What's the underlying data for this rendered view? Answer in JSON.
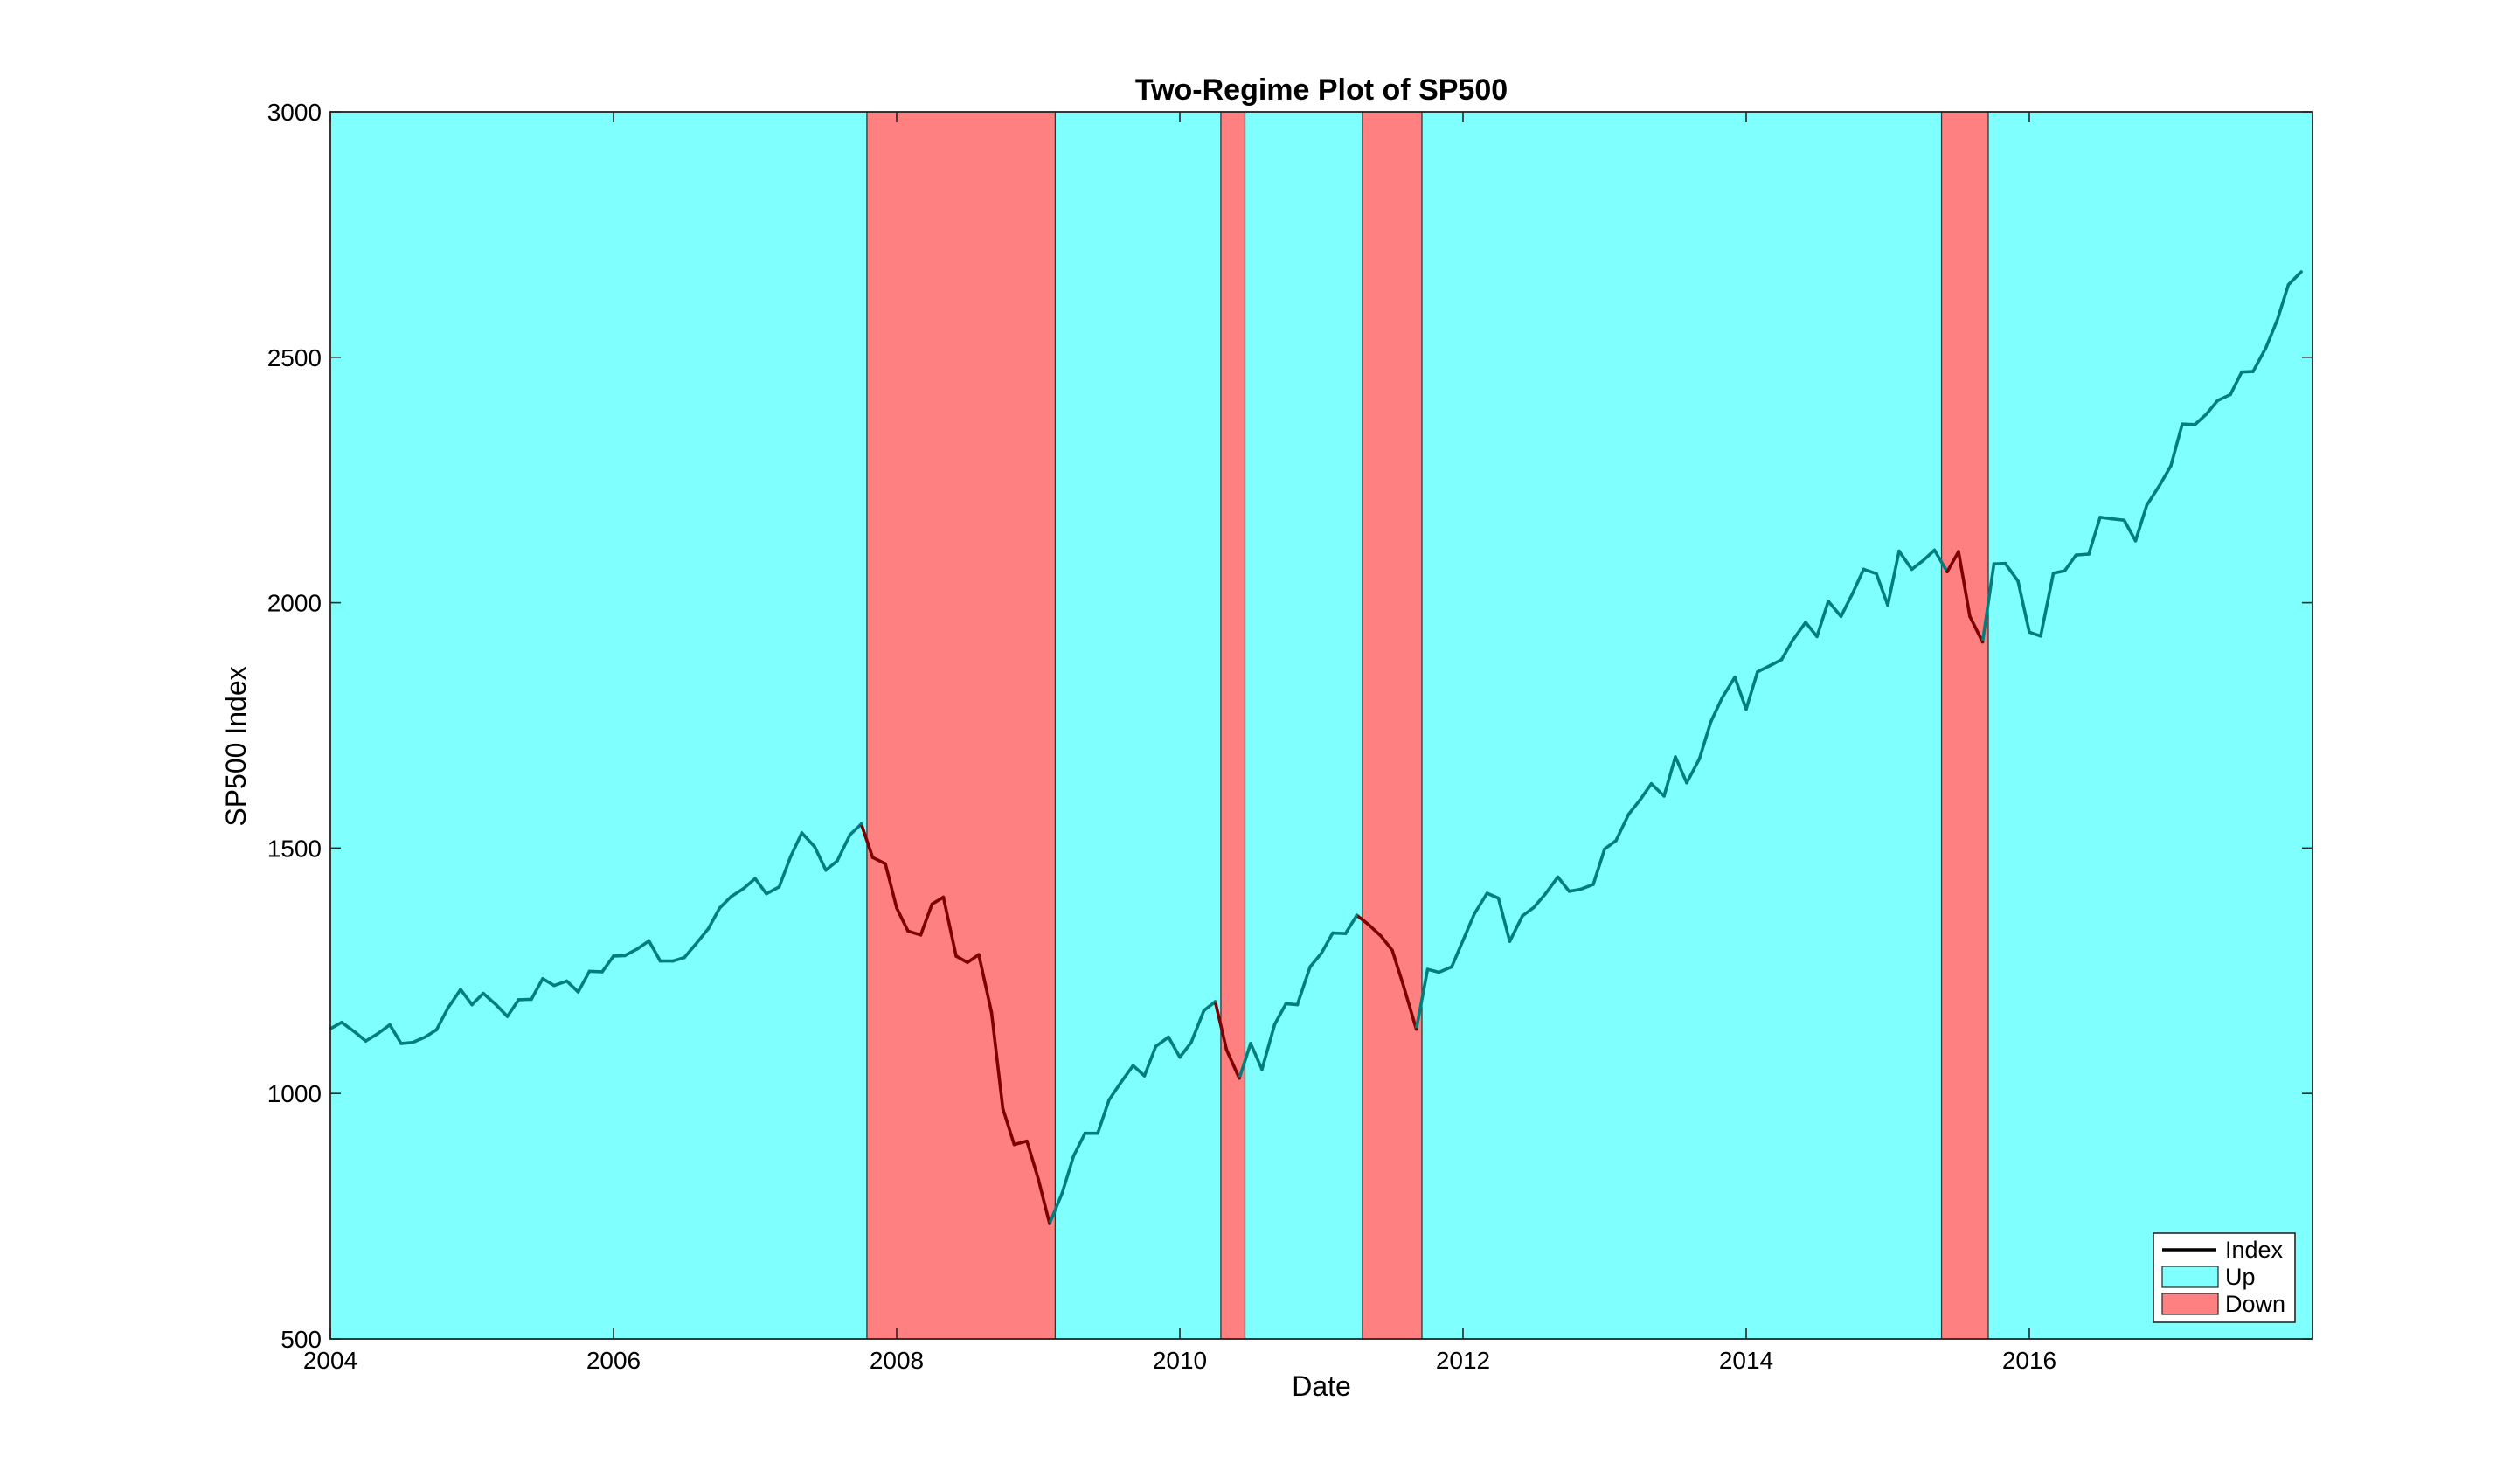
{
  "chart_data": {
    "type": "line",
    "title": "Two-Regime Plot of SP500",
    "xlabel": "Date",
    "ylabel": "SP500 Index",
    "xlim": [
      2004.0,
      2018.0
    ],
    "ylim": [
      500,
      3000
    ],
    "xticks": [
      2004,
      2006,
      2008,
      2010,
      2012,
      2014,
      2016
    ],
    "yticks": [
      500,
      1000,
      1500,
      2000,
      2500,
      3000
    ],
    "grid": false,
    "legend_position": "bottom-right",
    "legend": [
      {
        "label": "Index",
        "kind": "line",
        "color": "#000000"
      },
      {
        "label": "Up",
        "kind": "patch",
        "color": "#80ffff"
      },
      {
        "label": "Down",
        "kind": "patch",
        "color": "#ff8080"
      }
    ],
    "regimes": [
      {
        "name": "Up",
        "start": 2004.0,
        "end": 2007.79
      },
      {
        "name": "Down",
        "start": 2007.79,
        "end": 2009.12
      },
      {
        "name": "Up",
        "start": 2009.12,
        "end": 2010.29
      },
      {
        "name": "Down",
        "start": 2010.29,
        "end": 2010.46
      },
      {
        "name": "Up",
        "start": 2010.46,
        "end": 2011.29
      },
      {
        "name": "Down",
        "start": 2011.29,
        "end": 2011.71
      },
      {
        "name": "Up",
        "start": 2011.71,
        "end": 2015.38
      },
      {
        "name": "Down",
        "start": 2015.38,
        "end": 2015.71
      },
      {
        "name": "Up",
        "start": 2015.71,
        "end": 2018.0
      }
    ],
    "series": [
      {
        "name": "Index",
        "color": "#000000",
        "x": [
          2004.0,
          2004.08,
          2004.17,
          2004.25,
          2004.33,
          2004.42,
          2004.5,
          2004.58,
          2004.67,
          2004.75,
          2004.83,
          2004.92,
          2005.0,
          2005.08,
          2005.17,
          2005.25,
          2005.33,
          2005.42,
          2005.5,
          2005.58,
          2005.67,
          2005.75,
          2005.83,
          2005.92,
          2006.0,
          2006.08,
          2006.17,
          2006.25,
          2006.33,
          2006.42,
          2006.5,
          2006.58,
          2006.67,
          2006.75,
          2006.83,
          2006.92,
          2007.0,
          2007.08,
          2007.17,
          2007.25,
          2007.33,
          2007.42,
          2007.5,
          2007.58,
          2007.67,
          2007.75,
          2007.83,
          2007.92,
          2008.0,
          2008.08,
          2008.17,
          2008.25,
          2008.33,
          2008.42,
          2008.5,
          2008.58,
          2008.67,
          2008.75,
          2008.83,
          2008.92,
          2009.0,
          2009.08,
          2009.17,
          2009.25,
          2009.33,
          2009.42,
          2009.5,
          2009.58,
          2009.67,
          2009.75,
          2009.83,
          2009.92,
          2010.0,
          2010.08,
          2010.17,
          2010.25,
          2010.33,
          2010.42,
          2010.5,
          2010.58,
          2010.67,
          2010.75,
          2010.83,
          2010.92,
          2011.0,
          2011.08,
          2011.17,
          2011.25,
          2011.33,
          2011.42,
          2011.5,
          2011.58,
          2011.67,
          2011.75,
          2011.83,
          2011.92,
          2012.0,
          2012.08,
          2012.17,
          2012.25,
          2012.33,
          2012.42,
          2012.5,
          2012.58,
          2012.67,
          2012.75,
          2012.83,
          2012.92,
          2013.0,
          2013.08,
          2013.17,
          2013.25,
          2013.33,
          2013.42,
          2013.5,
          2013.58,
          2013.67,
          2013.75,
          2013.83,
          2013.92,
          2014.0,
          2014.08,
          2014.17,
          2014.25,
          2014.33,
          2014.42,
          2014.5,
          2014.58,
          2014.67,
          2014.75,
          2014.83,
          2014.92,
          2015.0,
          2015.08,
          2015.17,
          2015.25,
          2015.33,
          2015.42,
          2015.5,
          2015.58,
          2015.67,
          2015.75,
          2015.83,
          2015.92,
          2016.0,
          2016.08,
          2016.17,
          2016.25,
          2016.33,
          2016.42,
          2016.5,
          2016.58,
          2016.67,
          2016.75,
          2016.83,
          2016.92,
          2017.0,
          2017.08,
          2017.17,
          2017.25,
          2017.33,
          2017.42,
          2017.5,
          2017.58,
          2017.67,
          2017.75,
          2017.83,
          2017.92
        ],
        "values": [
          1132,
          1145,
          1126,
          1107,
          1121,
          1140,
          1102,
          1104,
          1115,
          1130,
          1174,
          1212,
          1181,
          1204,
          1181,
          1157,
          1191,
          1192,
          1234,
          1220,
          1229,
          1207,
          1249,
          1248,
          1280,
          1281,
          1295,
          1311,
          1270,
          1270,
          1277,
          1304,
          1336,
          1378,
          1401,
          1418,
          1438,
          1407,
          1421,
          1482,
          1531,
          1503,
          1455,
          1474,
          1527,
          1549,
          1481,
          1468,
          1378,
          1331,
          1323,
          1386,
          1400,
          1280,
          1267,
          1283,
          1165,
          969,
          896,
          903,
          826,
          735,
          798,
          873,
          919,
          919,
          987,
          1021,
          1057,
          1036,
          1096,
          1115,
          1074,
          1104,
          1169,
          1187,
          1089,
          1031,
          1102,
          1049,
          1141,
          1183,
          1181,
          1258,
          1286,
          1327,
          1326,
          1363,
          1345,
          1321,
          1292,
          1219,
          1131,
          1253,
          1247,
          1258,
          1312,
          1366,
          1408,
          1398,
          1310,
          1362,
          1379,
          1406,
          1441,
          1412,
          1416,
          1426,
          1498,
          1515,
          1569,
          1598,
          1631,
          1606,
          1686,
          1633,
          1682,
          1757,
          1806,
          1848,
          1783,
          1859,
          1872,
          1884,
          1924,
          1960,
          1931,
          2003,
          1972,
          2018,
          2068,
          2059,
          1995,
          2105,
          2068,
          2086,
          2107,
          2063,
          2104,
          1972,
          1920,
          2079,
          2080,
          2044,
          1940,
          1932,
          2060,
          2065,
          2097,
          2099,
          2174,
          2171,
          2168,
          2126,
          2199,
          2239,
          2279,
          2364,
          2363,
          2384,
          2412,
          2424,
          2470,
          2471,
          2519,
          2575,
          2648,
          2674
        ]
      }
    ]
  }
}
